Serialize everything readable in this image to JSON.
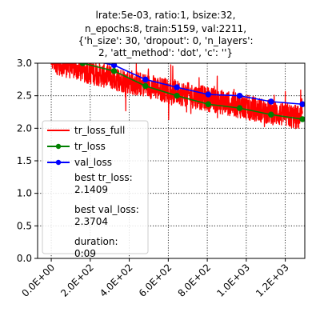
{
  "chart_data": {
    "type": "line",
    "title_lines": [
      "lrate:5e-03, ratio:1, bsize:32,",
      "n_epochs:8, train:5159, val:2211,",
      "{'h_size': 30, 'dropout': 0, 'n_layers':",
      "2, 'att_method': 'dot', 'c': ''}"
    ],
    "xlabel": "",
    "ylabel": "",
    "xlim": [
      -70,
      1300
    ],
    "ylim": [
      0.0,
      3.0
    ],
    "grid": true,
    "x_ticks": [
      0,
      200,
      400,
      600,
      800,
      1000,
      1200
    ],
    "x_tick_labels": [
      "0.0E+00",
      "2.0E+02",
      "4.0E+02",
      "6.0E+02",
      "8.0E+02",
      "1.0E+03",
      "1.2E+03"
    ],
    "y_ticks": [
      0.0,
      0.5,
      1.0,
      1.5,
      2.0,
      2.5,
      3.0
    ],
    "y_tick_labels": [
      "0.0",
      "0.5",
      "1.0",
      "1.5",
      "2.0",
      "2.5",
      "3.0"
    ],
    "legend_position": "center-left",
    "series": [
      {
        "name": "tr_loss_full",
        "color": "#ff0000",
        "style": "line",
        "x_start": 0,
        "x_end": 1288,
        "start_value": 3.05,
        "end_value": 2.15,
        "noise_amplitude": 0.38
      },
      {
        "name": "tr_loss",
        "color": "#008000",
        "style": "line-marker",
        "x": [
          161,
          322,
          483,
          644,
          805,
          966,
          1127,
          1288
        ],
        "values": [
          3.0,
          2.88,
          2.65,
          2.5,
          2.37,
          2.31,
          2.21,
          2.14
        ]
      },
      {
        "name": "val_loss",
        "color": "#0000ff",
        "style": "line-marker",
        "x": [
          161,
          322,
          483,
          644,
          805,
          966,
          1127,
          1288
        ],
        "values": [
          3.07,
          2.97,
          2.75,
          2.63,
          2.52,
          2.5,
          2.41,
          2.37
        ]
      }
    ],
    "legend_notes": [
      [
        "best tr_loss:",
        "2.1409"
      ],
      [
        "best val_loss:",
        "2.3704"
      ],
      [
        "duration:",
        "0:09"
      ]
    ]
  }
}
